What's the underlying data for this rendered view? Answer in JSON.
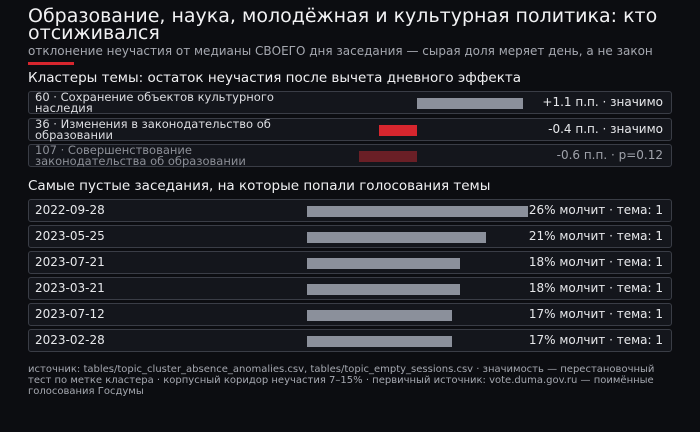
{
  "header": {
    "title": "Образование, наука, молодёжная и культурная политика: кто отсиживался",
    "subtitle": "отклонение неучастия от медианы СВОЕГО дня заседания — сырая доля меряет день, а не закон"
  },
  "clusters": {
    "heading": "Кластеры темы: остаток неучастия после вычета дневного эффекта",
    "items": [
      {
        "label": "60 · Сохранение объектов культурного наследия",
        "value": 1.1,
        "value_label": "+1.1 п.п. · значимо",
        "color": "#8b909b"
      },
      {
        "label": "36 · Изменения в законодательство об образовании",
        "value": -0.4,
        "value_label": "-0.4 п.п. · значимо",
        "color": "#d7262e"
      },
      {
        "label": "107 · Совершенствование законодательства об образовании",
        "value": -0.6,
        "value_label": "-0.6 п.п. · p=0.12",
        "color": "#6a1f26"
      }
    ]
  },
  "sessions": {
    "heading": "Самые пустые заседания, на которые попали голосования темы",
    "items": [
      {
        "date": "2022-09-28",
        "value": 26,
        "value_label": "26% молчит · тема: 1"
      },
      {
        "date": "2023-05-25",
        "value": 21,
        "value_label": "21% молчит · тема: 1"
      },
      {
        "date": "2023-07-21",
        "value": 18,
        "value_label": "18% молчит · тема: 1"
      },
      {
        "date": "2023-03-21",
        "value": 18,
        "value_label": "18% молчит · тема: 1"
      },
      {
        "date": "2023-07-12",
        "value": 17,
        "value_label": "17% молчит · тема: 1"
      },
      {
        "date": "2023-02-28",
        "value": 17,
        "value_label": "17% молчит · тема: 1"
      }
    ]
  },
  "footer": "источник: tables/topic_cluster_absence_anomalies.csv, tables/topic_empty_sessions.csv · значимость — перестановочный тест по метке кластера · корпусный коридор неучастия 7–15% · первичный источник: vote.duma.gov.ru — поимённые голосования Госдумы"
}
